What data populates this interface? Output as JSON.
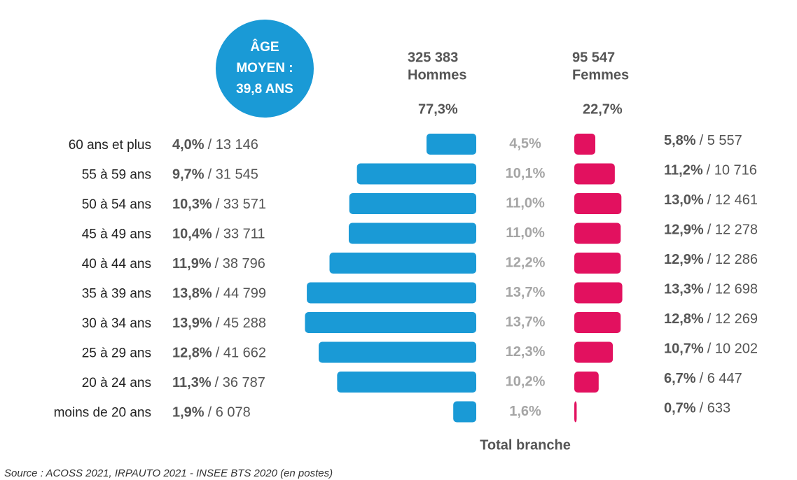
{
  "chart_data": {
    "type": "pyramid",
    "categories": [
      "60 ans et plus",
      "55 à 59 ans",
      "50 à 54 ans",
      "45 à 49 ans",
      "40 à 44 ans",
      "35 à 39 ans",
      "30 à 34 ans",
      "25 à 29 ans",
      "20 à 24 ans",
      "moins de 20 ans"
    ],
    "series": [
      {
        "name": "Hommes",
        "color": "#1a9ad6",
        "total": 325383,
        "total_label": "325 383",
        "share": 77.3,
        "share_label": "77,3%",
        "values": [
          13146,
          31545,
          33571,
          33711,
          38796,
          44799,
          45288,
          41662,
          36787,
          6078
        ],
        "value_labels": [
          "/ 13 146",
          "/ 31 545",
          "/ 33 571",
          "/ 33 711",
          "/ 38 796",
          "/ 44 799",
          "/ 45 288",
          "/ 41 662",
          "/ 36 787",
          "/ 6 078"
        ],
        "shares": [
          4.0,
          9.7,
          10.3,
          10.4,
          11.9,
          13.8,
          13.9,
          12.8,
          11.3,
          1.9
        ],
        "share_labels": [
          "4,0%",
          "9,7%",
          "10,3%",
          "10,4%",
          "11,9%",
          "13,8%",
          "13,9%",
          "12,8%",
          "11,3%",
          "1,9%"
        ]
      },
      {
        "name": "Femmes",
        "color": "#e2115f",
        "total": 95547,
        "total_label": "95 547",
        "share": 22.7,
        "share_label": "22,7%",
        "values": [
          5557,
          10716,
          12461,
          12278,
          12286,
          12698,
          12269,
          10202,
          6447,
          633
        ],
        "value_labels": [
          "/ 5 557",
          "/ 10 716",
          "/ 12 461",
          "/ 12 278",
          "/ 12 286",
          "/ 12 698",
          "/ 12 269",
          "/ 10 202",
          "/ 6 447",
          "/ 633"
        ],
        "shares": [
          5.8,
          11.2,
          13.0,
          12.9,
          12.9,
          13.3,
          12.8,
          10.7,
          6.7,
          0.7
        ],
        "share_labels": [
          "5,8%",
          "11,2%",
          "13,0%",
          "12,9%",
          "12,9%",
          "13,3%",
          "12,8%",
          "10,7%",
          "6,7%",
          "0,7%"
        ]
      }
    ],
    "total_branche": {
      "name": "Total branche",
      "values": [
        4.5,
        10.1,
        11.0,
        11.0,
        12.2,
        13.7,
        13.7,
        12.3,
        10.2,
        1.6
      ],
      "value_labels": [
        "4,5%",
        "10,1%",
        "11,0%",
        "11,0%",
        "12,2%",
        "13,7%",
        "13,7%",
        "12,3%",
        "10,2%",
        "1,6%"
      ]
    },
    "average_age": [
      "ÂGE",
      "MOYEN :",
      "39,8 ANS"
    ],
    "source": "Source :  ACOSS 2021, IRPAUTO 2021 - INSEE BTS 2020 (en postes)"
  }
}
